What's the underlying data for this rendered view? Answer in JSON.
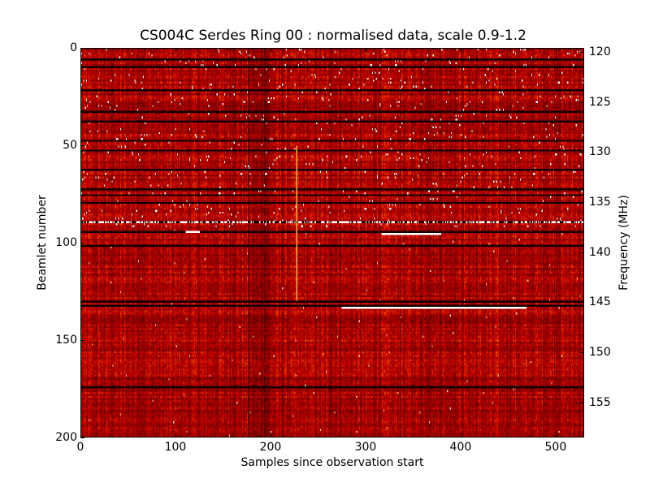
{
  "chart_data": {
    "type": "heatmap",
    "title": "CS004C Serdes Ring 00 : normalised data, scale 0.9-1.2",
    "xlabel": "Samples since observation start",
    "ylabel": "Beamlet number",
    "y2label": "Frequency (MHz)",
    "xlim": [
      0,
      530
    ],
    "ylim": [
      200,
      0
    ],
    "y2lim": [
      158.5,
      119.6
    ],
    "x_ticks": [
      "0",
      "100",
      "200",
      "300",
      "400",
      "500"
    ],
    "y_ticks": [
      "0",
      "50",
      "100",
      "150",
      "200"
    ],
    "y2_ticks": [
      "120",
      "125",
      "130",
      "135",
      "140",
      "145",
      "150",
      "155"
    ],
    "color_scale": {
      "vmin": 0.9,
      "vmax": 1.2,
      "colormap": "gist_heat"
    },
    "dark_rows_beamlet": [
      5,
      9,
      21,
      32,
      37,
      47,
      52,
      62,
      72,
      75,
      79,
      89,
      94,
      101,
      130,
      132,
      174
    ],
    "bright_speckled_rows_beamlet": [
      89
    ],
    "bright_streaks": [
      {
        "beamlet": 133,
        "sample_start": 275,
        "sample_end": 470
      },
      {
        "beamlet": 95,
        "sample_start": 317,
        "sample_end": 380
      },
      {
        "beamlet": 94,
        "sample_start": 110,
        "sample_end": 125
      }
    ],
    "bright_vertical_line": {
      "sample": 227,
      "beamlet_start": 50,
      "beamlet_end": 130
    },
    "grid": false
  }
}
